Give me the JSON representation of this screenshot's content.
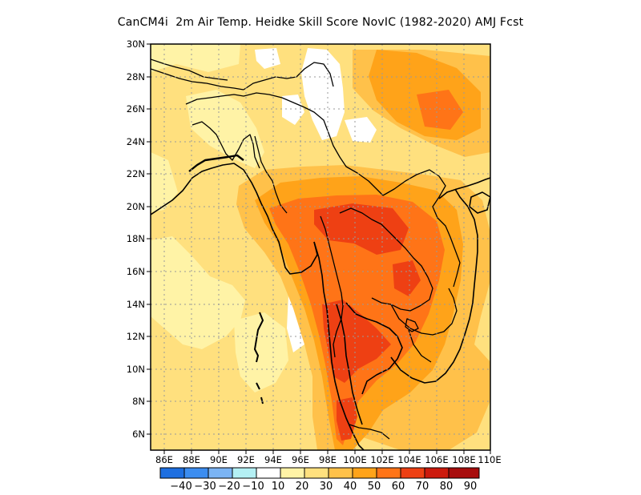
{
  "title": "CanCM4i  2m Air Temp. Heidke Skill Score NovIC (1982-2020) AMJ Fcst",
  "map": {
    "lon_range": [
      85,
      110
    ],
    "lat_range": [
      5,
      30
    ],
    "x_ticks": [
      "86E",
      "88E",
      "90E",
      "92E",
      "94E",
      "96E",
      "98E",
      "100E",
      "102E",
      "104E",
      "106E",
      "108E",
      "110E"
    ],
    "y_ticks": [
      "6N",
      "8N",
      "10N",
      "12N",
      "14N",
      "16N",
      "18N",
      "20N",
      "22N",
      "24N",
      "26N",
      "28N",
      "30N"
    ],
    "gridlines": "dotted"
  },
  "colorbar": {
    "levels": [
      "-40",
      "-30",
      "-20",
      "-10",
      "10",
      "20",
      "30",
      "40",
      "50",
      "60",
      "70",
      "80",
      "90"
    ],
    "colors": [
      "#1e6fe0",
      "#3c8df0",
      "#7bb4f4",
      "#b4f0f4",
      "#ffffff",
      "#fff3a6",
      "#ffe07e",
      "#ffc14a",
      "#ffa319",
      "#ff7417",
      "#ee4013",
      "#cc1a0d",
      "#a80d0d"
    ]
  }
}
